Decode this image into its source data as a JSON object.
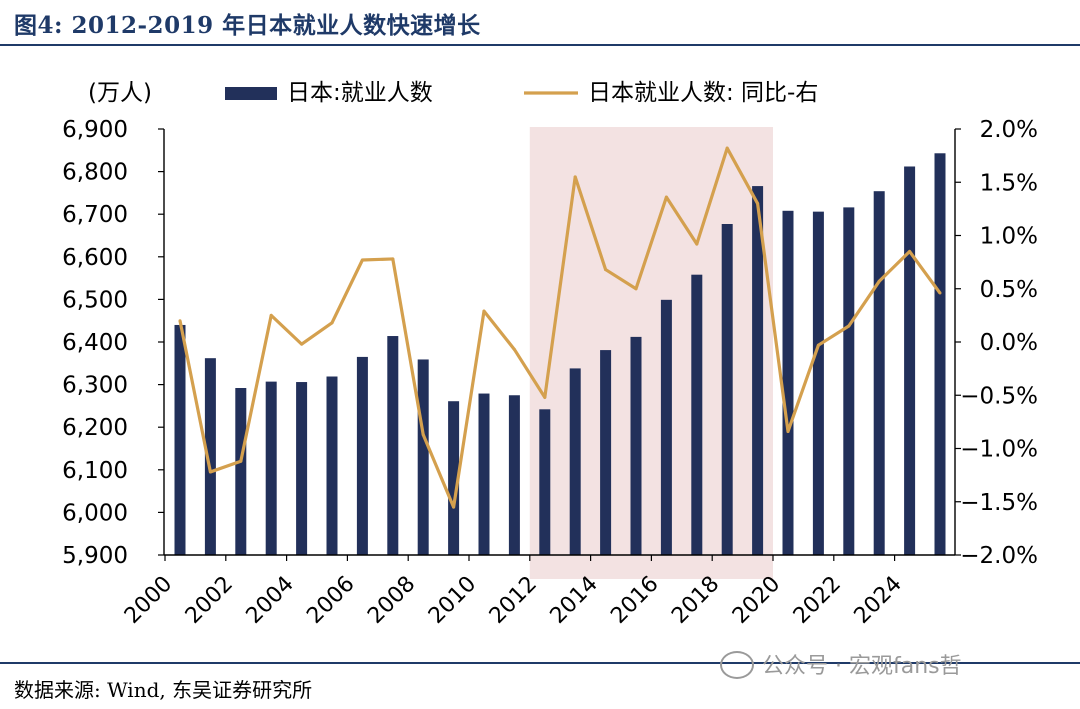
{
  "title": "图4:  2012-2019 年日本就业人数快速增长",
  "source": "数据来源:  Wind,  东吴证券研究所",
  "watermark": "公众号 · 宏观fans哲",
  "colors": {
    "bar": "#22305a",
    "line": "#d4a04e",
    "highlight": "#f3e2e2",
    "title": "#1f3a68"
  },
  "chart_data": {
    "type": "bar+line",
    "left_unit": "(万人)",
    "left_axis": {
      "min": 5900,
      "max": 6900,
      "ticks": [
        "5,900",
        "6,000",
        "6,100",
        "6,200",
        "6,300",
        "6,400",
        "6,500",
        "6,600",
        "6,700",
        "6,800",
        "6,900"
      ]
    },
    "right_axis": {
      "min": -2.0,
      "max": 2.0,
      "ticks": [
        "-2.0%",
        "-1.5%",
        "-1.0%",
        "-0.5%",
        "0.0%",
        "0.5%",
        "1.0%",
        "1.5%",
        "2.0%"
      ]
    },
    "x_tick_labels": [
      "2000",
      "2002",
      "2004",
      "2006",
      "2008",
      "2010",
      "2012",
      "2014",
      "2016",
      "2018",
      "2020",
      "2022",
      "2024"
    ],
    "years": [
      2000,
      2001,
      2002,
      2003,
      2004,
      2005,
      2006,
      2007,
      2008,
      2009,
      2010,
      2011,
      2012,
      2013,
      2014,
      2015,
      2016,
      2017,
      2018,
      2019,
      2020,
      2021,
      2022,
      2023,
      2024,
      2025
    ],
    "highlight_range": [
      2012,
      2020
    ],
    "series": [
      {
        "name": "日本:就业人数",
        "type": "bar",
        "values": [
          6440,
          6362,
          6292,
          6307,
          6306,
          6319,
          6365,
          6414,
          6359,
          6261,
          6279,
          6275,
          6242,
          6338,
          6381,
          6412,
          6499,
          6558,
          6677,
          6766,
          6708,
          6706,
          6716,
          6754,
          6812,
          6843
        ]
      },
      {
        "name": "日本就业人数: 同比-右",
        "type": "line",
        "axis": "right",
        "values": [
          0.2,
          -1.22,
          -1.12,
          0.25,
          -0.02,
          0.18,
          0.77,
          0.78,
          -0.87,
          -1.55,
          0.29,
          -0.07,
          -0.52,
          1.55,
          0.68,
          0.5,
          1.36,
          0.92,
          1.82,
          1.3,
          -0.84,
          -0.03,
          0.15,
          0.57,
          0.85,
          0.46
        ]
      }
    ]
  }
}
